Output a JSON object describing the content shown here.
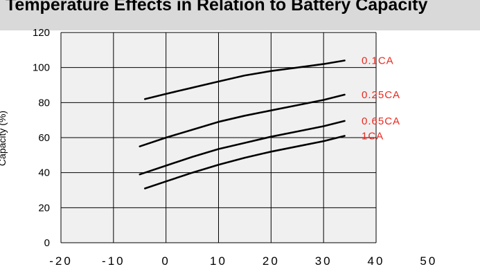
{
  "header": {
    "title": "Temperature Effects in Relation to Battery Capacity"
  },
  "chart_data": {
    "type": "line",
    "title": "Temperature Effects in Relation to Battery Capacity",
    "ylabel": "Capacity (%)",
    "xlabel": "",
    "xlim": [
      -20,
      40
    ],
    "ylim": [
      0,
      120
    ],
    "xticks": [
      "-20",
      "-10",
      "0",
      "10",
      "20",
      "30",
      "40",
      "50"
    ],
    "yticks": [
      "0",
      "20",
      "40",
      "60",
      "80",
      "100",
      "120"
    ],
    "grid": true,
    "legend": "inline-right",
    "colors": {
      "series": "#000000",
      "label": "#e8281e",
      "plot_bg": "#f0f0f0",
      "header_bg": "#d9d9d9"
    },
    "series": [
      {
        "name": "0.1CA",
        "x": [
          -4,
          0,
          5,
          10,
          15,
          20,
          25,
          30,
          34
        ],
        "y": [
          82,
          85,
          88.5,
          92,
          95.5,
          98,
          100,
          102,
          104
        ]
      },
      {
        "name": "0.25CA",
        "x": [
          -5,
          0,
          5,
          10,
          15,
          20,
          25,
          30,
          34
        ],
        "y": [
          55,
          60,
          64.5,
          69,
          72.5,
          75.5,
          78.5,
          81.5,
          84.5
        ]
      },
      {
        "name": "0.65CA",
        "x": [
          -5,
          0,
          5,
          10,
          15,
          20,
          25,
          30,
          34
        ],
        "y": [
          39,
          44,
          49,
          53.5,
          57,
          60.5,
          63.5,
          66.5,
          69.5
        ]
      },
      {
        "name": "1CA",
        "x": [
          -4,
          0,
          5,
          10,
          15,
          20,
          25,
          30,
          34
        ],
        "y": [
          31,
          35,
          40,
          44.5,
          48.5,
          52,
          55,
          58,
          61
        ]
      }
    ]
  }
}
